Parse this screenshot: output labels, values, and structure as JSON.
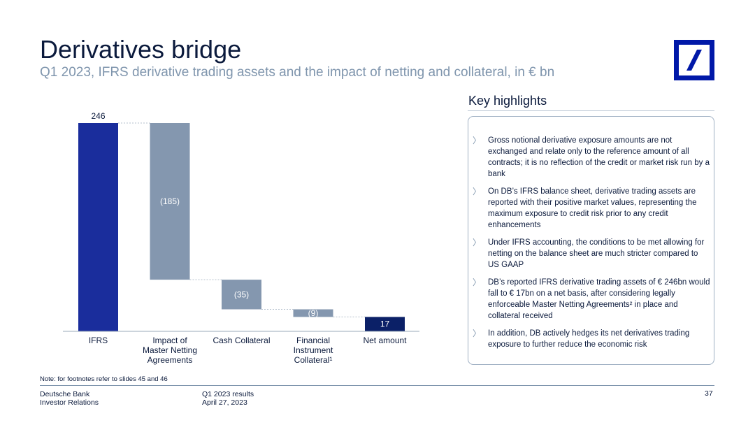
{
  "header": {
    "title": "Derivatives bridge",
    "subtitle": "Q1 2023, IFRS derivative trading assets and the impact of netting and collateral, in € bn"
  },
  "logo": {
    "icon": "deutsche-bank-logo",
    "color": "#0018a8"
  },
  "chart_data": {
    "type": "bar",
    "subtype": "waterfall",
    "unit": "€ bn",
    "categories": [
      [
        "IFRS"
      ],
      [
        "Impact of",
        "Master Netting",
        "Agreements"
      ],
      [
        "Cash Collateral"
      ],
      [
        "Financial",
        "Instrument",
        "Collateral¹"
      ],
      [
        "Net amount"
      ]
    ],
    "values": [
      246,
      -185,
      -35,
      -9,
      17
    ],
    "data_labels": [
      "246",
      "(185)",
      "(35)",
      "(9)",
      "17"
    ],
    "colors": [
      "#1a2d9c",
      "#8497af",
      "#8497af",
      "#8497af",
      "#0b2067"
    ],
    "ylim": [
      0,
      246
    ],
    "grid": false,
    "legend": "none"
  },
  "highlights": {
    "title": "Key highlights",
    "items": [
      "Gross notional derivative exposure amounts are not exchanged and relate only to the reference amount of all contracts; it is no reflection of the credit or market risk run by a bank",
      "On DB’s IFRS balance sheet, derivative trading assets are reported with their positive market values, representing the maximum exposure to credit risk prior to any credit enhancements",
      "Under IFRS accounting, the conditions to be met allowing for netting on the balance sheet are much stricter compared to US GAAP",
      "DB’s reported IFRS derivative trading assets of € 246bn would fall to € 17bn on a net basis, after considering legally enforceable Master Netting Agreements² in place and collateral received",
      "In addition, DB actively hedges its net derivatives trading exposure to further reduce the economic risk"
    ]
  },
  "note": "Note: for footnotes refer to slides 45 and 46",
  "footer": {
    "company": "Deutsche Bank",
    "department": "Investor Relations",
    "report": "Q1 2023 results",
    "date": "April 27, 2023",
    "page": "37"
  }
}
